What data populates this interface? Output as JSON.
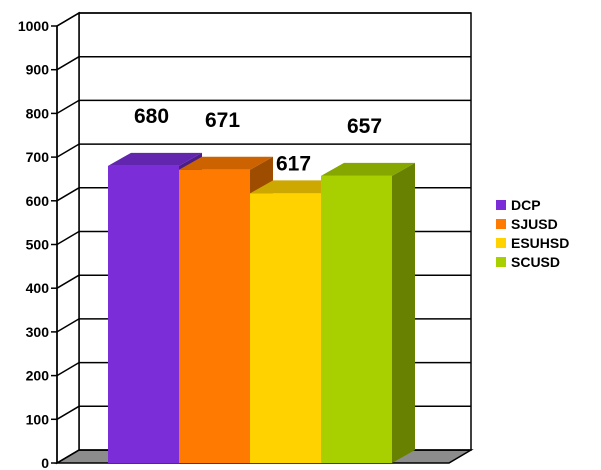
{
  "chart_data": {
    "type": "bar",
    "style": "3d-column",
    "title": "",
    "xlabel": "",
    "ylabel": "",
    "ylim": [
      0,
      1000
    ],
    "y_ticks": [
      0,
      100,
      200,
      300,
      400,
      500,
      600,
      700,
      800,
      900,
      1000
    ],
    "grid": true,
    "legend_position": "right",
    "series": [
      {
        "name": "DCP",
        "value": 680,
        "color": "#7b2ed8",
        "label": "680"
      },
      {
        "name": "SJUSD",
        "value": 671,
        "color": "#ff7a00",
        "label": "671"
      },
      {
        "name": "ESUHSD",
        "value": 617,
        "color": "#ffd200",
        "label": "617"
      },
      {
        "name": "SCUSD",
        "value": 657,
        "color": "#a8d000",
        "label": "657"
      }
    ]
  }
}
